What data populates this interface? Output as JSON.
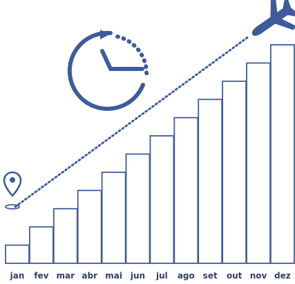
{
  "chart_data": {
    "type": "bar",
    "categories": [
      "jan",
      "fev",
      "mar",
      "abr",
      "mai",
      "jun",
      "jul",
      "ago",
      "set",
      "out",
      "nov",
      "dez"
    ],
    "values": [
      1,
      2,
      3,
      4,
      5,
      6,
      7,
      8,
      9,
      10,
      11,
      12
    ],
    "title": "",
    "xlabel": "",
    "ylabel": "",
    "ylim": [
      0,
      12
    ],
    "grid": false,
    "legend": "none"
  },
  "colors": {
    "accent": "#3D5C99",
    "bar_fill": "#FFFFFF",
    "label": "#2E3F66"
  },
  "icons": {
    "clock": "clock-with-arrow-icon",
    "airplane": "airplane-icon",
    "pin": "location-pin-icon"
  }
}
